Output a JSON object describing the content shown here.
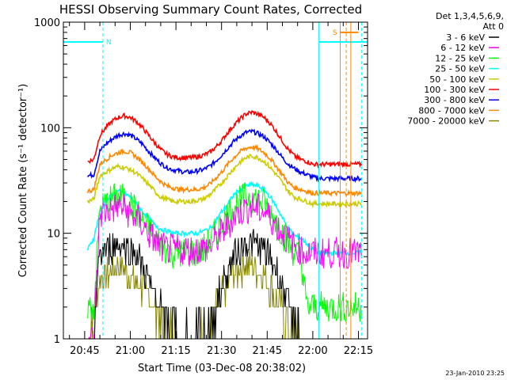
{
  "chart_data": {
    "type": "line",
    "title": "HESSI Observing Summary Count Rates, Corrected",
    "xlabel": "Start Time (03-Dec-08 20:38:02)",
    "ylabel": "Corrected Count Rate (s⁻¹ detector⁻¹)",
    "yscale": "log",
    "ylim": [
      1,
      1000
    ],
    "xlim_minutes_after_2038": [
      0,
      100
    ],
    "x_tick_labels": [
      "20:45",
      "21:00",
      "21:15",
      "21:30",
      "21:45",
      "22:00",
      "22:15"
    ],
    "x_tick_minutes": [
      7,
      22,
      37,
      52,
      67,
      82,
      97
    ],
    "y_tick_labels": [
      "1",
      "10",
      "100",
      "1000"
    ],
    "y_tick_values": [
      1,
      10,
      100,
      1000
    ],
    "legend_header": [
      "Det 1,3,4,5,6,9,",
      "Att 0"
    ],
    "legend_position": "right",
    "footer_date": "23-Jan-2010 23:25",
    "series": [
      {
        "name": "3 - 6 keV",
        "color": "#000000",
        "x": [
          8,
          10,
          12,
          14,
          16,
          18,
          20,
          22,
          24,
          26,
          28,
          30,
          32,
          34,
          36,
          38,
          40,
          42,
          44,
          46,
          48,
          50,
          52,
          54,
          56,
          58,
          60,
          62,
          64,
          66,
          68,
          70,
          72,
          74,
          76,
          78,
          80,
          82,
          84,
          86,
          88,
          90,
          92,
          94,
          96,
          98
        ],
        "values": [
          1,
          1,
          6.5,
          7,
          7.5,
          8,
          7.5,
          7,
          6.5,
          5,
          3.5,
          2.5,
          2,
          1.5,
          1.3,
          1.2,
          1.1,
          1.1,
          1.2,
          1.3,
          1.5,
          2,
          3,
          4.5,
          6,
          7,
          8,
          8,
          7.5,
          7,
          6,
          4.5,
          3,
          2,
          1.5,
          1.2,
          1,
          1,
          1,
          1,
          1,
          1,
          1,
          1,
          1,
          1
        ]
      },
      {
        "name": "6 - 12 keV",
        "color": "#ff00ff",
        "x": [
          8,
          10,
          12,
          14,
          16,
          18,
          20,
          22,
          24,
          26,
          28,
          30,
          32,
          34,
          36,
          38,
          40,
          42,
          44,
          46,
          48,
          50,
          52,
          54,
          56,
          58,
          60,
          62,
          64,
          66,
          68,
          70,
          72,
          74,
          76,
          78,
          80,
          82,
          84,
          86,
          88,
          90,
          92,
          94,
          96,
          98
        ],
        "values": [
          1,
          1,
          15,
          16,
          17,
          18,
          17,
          15,
          14,
          12,
          10,
          8.5,
          7.5,
          7,
          7,
          7,
          7,
          7,
          7,
          7,
          7.5,
          8.5,
          10,
          12,
          14,
          16,
          17,
          18,
          17,
          16,
          14,
          12,
          10,
          8.5,
          7.5,
          7,
          6.5,
          6.5,
          6.5,
          6.5,
          6.5,
          6.5,
          6.5,
          6.5,
          6.5,
          6.5
        ]
      },
      {
        "name": "12 - 25 keV",
        "color": "#00ff00",
        "x": [
          8,
          10,
          12,
          14,
          16,
          18,
          20,
          22,
          24,
          26,
          28,
          30,
          32,
          34,
          36,
          38,
          40,
          42,
          44,
          46,
          48,
          50,
          52,
          54,
          56,
          58,
          60,
          62,
          64,
          66,
          68,
          70,
          72,
          74,
          76,
          78,
          80,
          82,
          84,
          86,
          88,
          90,
          92,
          94,
          96,
          98
        ],
        "values": [
          2,
          2,
          17,
          19,
          21,
          22,
          21,
          19,
          16,
          13,
          11,
          9,
          8,
          7,
          6.5,
          6.5,
          6.5,
          6.5,
          6.5,
          7,
          8,
          10,
          12,
          15,
          18,
          20,
          22,
          22,
          21,
          19,
          16,
          13,
          10,
          8,
          6.5,
          6,
          2,
          2,
          2,
          2,
          2,
          2,
          2,
          2,
          2,
          2
        ]
      },
      {
        "name": "25 - 50 keV",
        "color": "#00ffff",
        "x": [
          8,
          10,
          12,
          14,
          16,
          18,
          20,
          22,
          24,
          26,
          28,
          30,
          32,
          34,
          36,
          38,
          40,
          42,
          44,
          46,
          48,
          50,
          52,
          54,
          56,
          58,
          60,
          62,
          64,
          66,
          68,
          70,
          72,
          74,
          76,
          78,
          80,
          82,
          84,
          86,
          88,
          90,
          92,
          94,
          96,
          98
        ],
        "values": [
          7,
          9,
          16,
          20,
          23,
          25,
          24,
          22,
          19,
          16,
          14,
          12,
          11,
          10.5,
          10,
          10,
          10,
          10,
          10,
          10.5,
          11,
          13,
          16,
          19,
          23,
          26,
          28,
          29,
          28,
          26,
          22,
          18,
          14,
          11,
          9.5,
          9,
          8,
          7,
          6.5,
          6.5,
          6.5,
          6.5,
          6.5,
          6.5,
          6.5,
          6.5
        ]
      },
      {
        "name": "50 - 100 keV",
        "color": "#cccc00",
        "x": [
          8,
          10,
          12,
          14,
          16,
          18,
          20,
          22,
          24,
          26,
          28,
          30,
          32,
          34,
          36,
          38,
          40,
          42,
          44,
          46,
          48,
          50,
          52,
          54,
          56,
          58,
          60,
          62,
          64,
          66,
          68,
          70,
          72,
          74,
          76,
          78,
          80,
          82,
          84,
          86,
          88,
          90,
          92,
          94,
          96,
          98
        ],
        "values": [
          20,
          21,
          35,
          38,
          41,
          43,
          42,
          40,
          37,
          33,
          29,
          25,
          22,
          21,
          20,
          20,
          20,
          20,
          20.5,
          21,
          23,
          26,
          30,
          35,
          41,
          47,
          52,
          54,
          52,
          48,
          42,
          36,
          30,
          25,
          22,
          21,
          20,
          19,
          19,
          19,
          19,
          19,
          19,
          19,
          19,
          19
        ]
      },
      {
        "name": "100 - 300 keV",
        "color": "#ff0000",
        "x": [
          8,
          10,
          12,
          14,
          16,
          18,
          20,
          22,
          24,
          26,
          28,
          30,
          32,
          34,
          36,
          38,
          40,
          42,
          44,
          46,
          48,
          50,
          52,
          54,
          56,
          58,
          60,
          62,
          64,
          66,
          68,
          70,
          72,
          74,
          76,
          78,
          80,
          82,
          84,
          86,
          88,
          90,
          92,
          94,
          96,
          98
        ],
        "values": [
          48,
          50,
          85,
          100,
          115,
          125,
          130,
          125,
          115,
          100,
          85,
          72,
          62,
          56,
          53,
          52,
          52,
          52,
          53,
          55,
          58,
          65,
          75,
          90,
          105,
          120,
          135,
          140,
          135,
          125,
          110,
          92,
          75,
          62,
          54,
          50,
          48,
          45,
          45,
          45,
          45,
          45,
          45,
          45,
          45,
          45
        ]
      },
      {
        "name": "300 - 800 keV",
        "color": "#0000ff",
        "x": [
          8,
          10,
          12,
          14,
          16,
          18,
          20,
          22,
          24,
          26,
          28,
          30,
          32,
          34,
          36,
          38,
          40,
          42,
          44,
          46,
          48,
          50,
          52,
          54,
          56,
          58,
          60,
          62,
          64,
          66,
          68,
          70,
          72,
          74,
          76,
          78,
          80,
          82,
          84,
          86,
          88,
          90,
          92,
          94,
          96,
          98
        ],
        "values": [
          35,
          36,
          60,
          70,
          78,
          85,
          88,
          85,
          78,
          70,
          60,
          52,
          46,
          42,
          40,
          39,
          38,
          38,
          39,
          40,
          43,
          48,
          55,
          64,
          74,
          83,
          90,
          92,
          88,
          82,
          72,
          62,
          52,
          45,
          41,
          38,
          36,
          34,
          33,
          33,
          33,
          33,
          33,
          33,
          33,
          33
        ]
      },
      {
        "name": "800 - 7000 keV",
        "color": "#ff8800",
        "x": [
          8,
          10,
          12,
          14,
          16,
          18,
          20,
          22,
          24,
          26,
          28,
          30,
          32,
          34,
          36,
          38,
          40,
          42,
          44,
          46,
          48,
          50,
          52,
          54,
          56,
          58,
          60,
          62,
          64,
          66,
          68,
          70,
          72,
          74,
          76,
          78,
          80,
          82,
          84,
          86,
          88,
          90,
          92,
          94,
          96,
          98
        ],
        "values": [
          25,
          26,
          45,
          50,
          55,
          58,
          60,
          58,
          53,
          47,
          41,
          35,
          31,
          28,
          27,
          26,
          26,
          26,
          26,
          27,
          29,
          33,
          38,
          45,
          52,
          59,
          64,
          66,
          63,
          58,
          51,
          43,
          36,
          30,
          27,
          26,
          25,
          24,
          24,
          24,
          24,
          24,
          24,
          24,
          24,
          24
        ]
      },
      {
        "name": "7000 - 20000 keV",
        "color": "#888800",
        "x": [
          8,
          10,
          12,
          14,
          16,
          18,
          20,
          22,
          24,
          26,
          28,
          30,
          32,
          34,
          36,
          38,
          40,
          42,
          44,
          46,
          48,
          50,
          52,
          54,
          56,
          58,
          60,
          62,
          64,
          66,
          68,
          70,
          72,
          74,
          76,
          78,
          80,
          82,
          84,
          86,
          88,
          90,
          92,
          94,
          96,
          98
        ],
        "values": [
          1,
          2,
          3.5,
          4,
          4.5,
          5,
          4.5,
          4,
          3.5,
          3,
          2.5,
          2,
          1.5,
          1.3,
          1.2,
          1.1,
          1,
          1,
          1.1,
          1.2,
          1.4,
          1.8,
          2.5,
          3.2,
          4,
          4.5,
          5,
          5,
          4.5,
          4,
          3.2,
          2.5,
          1.8,
          1.4,
          1.2,
          1,
          1,
          1,
          1,
          1,
          1,
          1,
          1,
          1,
          1,
          1
        ]
      }
    ],
    "annotations": {
      "night_label": "N",
      "saa_label": "S",
      "night_level": 650,
      "saa_level": 800,
      "night_bar_colour": "#00ffff",
      "saa_bar_colour": "#ff8800"
    }
  }
}
